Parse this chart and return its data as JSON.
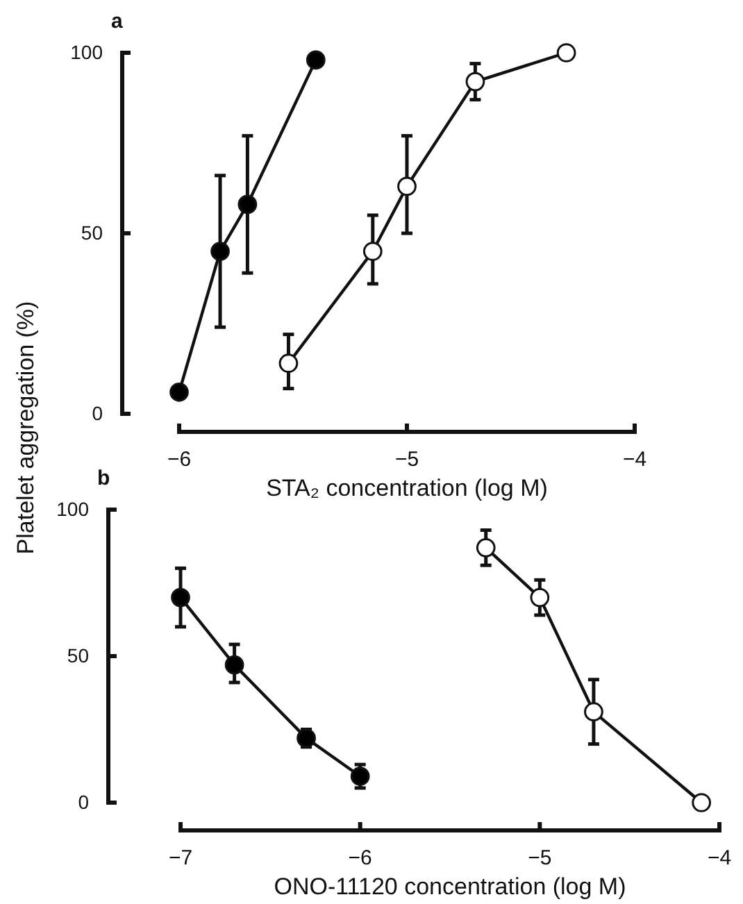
{
  "chart_data": [
    {
      "type": "line",
      "title": "a",
      "xlabel": "STA₂ concentration (log M)",
      "ylabel": "Platelet aggregation (%)",
      "xlim": [
        -6,
        -4
      ],
      "xticks": [
        -6,
        -5,
        -4
      ],
      "ylim": [
        0,
        100
      ],
      "yticks": [
        0,
        50,
        100
      ],
      "marker": "circle",
      "grid": false,
      "series": [
        {
          "color": "#000000",
          "x": [
            -6,
            -5.82,
            -5.7,
            -5.4
          ],
          "values": [
            6,
            45,
            58,
            98
          ],
          "errors": [
            null,
            [
              24,
              66
            ],
            [
              39,
              77
            ],
            null
          ]
        },
        {
          "color": "#ffffff",
          "x": [
            -5.52,
            -5.15,
            -5,
            -4.7,
            -4.3
          ],
          "values": [
            14,
            45,
            63,
            92,
            100
          ],
          "errors": [
            [
              7,
              22
            ],
            [
              36,
              55
            ],
            [
              50,
              77
            ],
            [
              87,
              97
            ],
            null
          ]
        }
      ]
    },
    {
      "type": "line",
      "title": "b",
      "xlabel": "ONO-11120 concentration (log M)",
      "xlim": [
        -7,
        -4
      ],
      "xticks": [
        -7,
        -6,
        -5,
        -4
      ],
      "ylim": [
        0,
        100
      ],
      "yticks": [
        0,
        50,
        100
      ],
      "marker": "circle",
      "grid": false,
      "series": [
        {
          "color": "#000000",
          "x": [
            -7,
            -6.7,
            -6.3,
            -6
          ],
          "values": [
            70,
            47,
            22,
            9
          ],
          "errors": [
            [
              60,
              80
            ],
            [
              41,
              54
            ],
            [
              19,
              25
            ],
            [
              5,
              13
            ]
          ]
        },
        {
          "color": "#ffffff",
          "x": [
            -5.3,
            -5,
            -4.7,
            -4.1
          ],
          "values": [
            87,
            70,
            31,
            0
          ],
          "errors": [
            [
              81,
              93
            ],
            [
              64,
              76
            ],
            [
              20,
              42
            ],
            null
          ]
        }
      ]
    }
  ]
}
